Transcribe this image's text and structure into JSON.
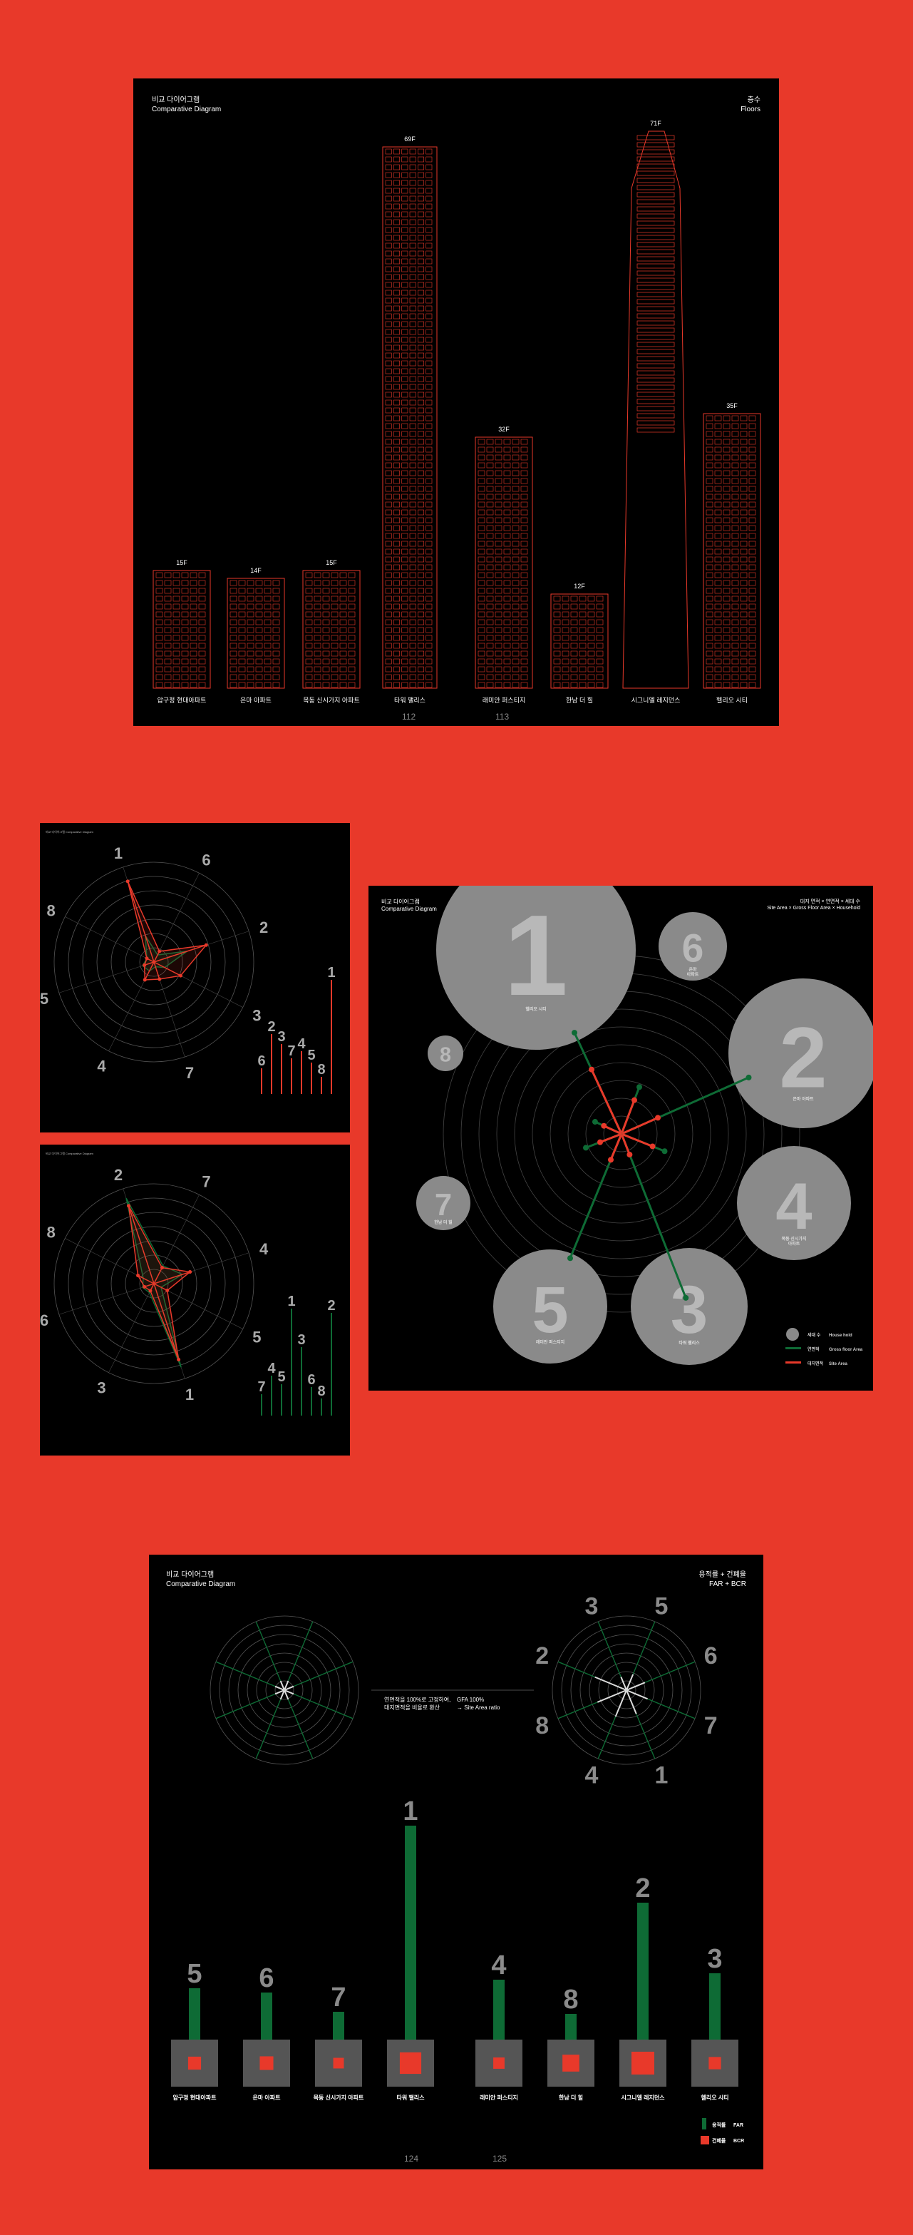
{
  "colors": {
    "background": "#e8392a",
    "panel": "#000000",
    "outline": "#e8392a",
    "green": "#0e6b35",
    "grey": "#8a8a8a"
  },
  "section1": {
    "title_kr": "비교 다이어그램",
    "title_en": "Comparative Diagram",
    "topic_kr": "층수",
    "topic_en": "Floors",
    "page_left": "112",
    "page_right": "113",
    "buildings": [
      {
        "name": "압구정 현대아파트",
        "floors_label": "15F",
        "floors": 15
      },
      {
        "name": "은마 아파트",
        "floors_label": "14F",
        "floors": 14
      },
      {
        "name": "목동 신시가지 아파트",
        "floors_label": "15F",
        "floors": 15
      },
      {
        "name": "타워 팰리스",
        "floors_label": "69F",
        "floors": 69
      },
      {
        "name": "래미안 퍼스티지",
        "floors_label": "32F",
        "floors": 32
      },
      {
        "name": "한남 더 힐",
        "floors_label": "12F",
        "floors": 12
      },
      {
        "name": "시그니엘 레지던스",
        "floors_label": "71F",
        "floors": 71
      },
      {
        "name": "헬리오 시티",
        "floors_label": "35F",
        "floors": 35
      }
    ]
  },
  "section2": {
    "small_left_title": "비교 다이어그램\nComparative Diagram",
    "radarA": {
      "axis_labels": [
        "1",
        "6",
        "2",
        "3",
        "7",
        "4",
        "5",
        "8"
      ],
      "bar_labels": [
        "6",
        "2",
        "3",
        "7",
        "4",
        "5",
        "8",
        "1"
      ],
      "bar_values": [
        0.18,
        0.42,
        0.35,
        0.25,
        0.3,
        0.22,
        0.12,
        0.8
      ]
    },
    "radarB": {
      "axis_labels": [
        "2",
        "7",
        "4",
        "5",
        "1",
        "3",
        "6",
        "8"
      ],
      "bar_labels": [
        "7",
        "4",
        "5",
        "1",
        "3",
        "6",
        "8",
        "2"
      ],
      "bar_values": [
        0.15,
        0.28,
        0.22,
        0.75,
        0.48,
        0.2,
        0.12,
        0.72
      ]
    },
    "big": {
      "title_kr": "비교 다이어그램",
      "title_en": "Comparative Diagram",
      "topic_line1": "대지 면적 × 연면적 × 세대 수",
      "topic_line2": "Site Area × Gross Floor Area × Household",
      "circles": [
        {
          "num": "1",
          "name": "헬리오 시티",
          "size": 1.0
        },
        {
          "num": "6",
          "name": "은마\n아파트",
          "size": 0.35
        },
        {
          "num": "2",
          "name": "은마 아파트",
          "size": 0.78
        },
        {
          "num": "4",
          "name": "목동 신시가지\n아파트",
          "size": 0.6
        },
        {
          "num": "3",
          "name": "타워 팰리스",
          "size": 0.62
        },
        {
          "num": "5",
          "name": "래미안 퍼스티지",
          "size": 0.58
        },
        {
          "num": "7",
          "name": "한남 더 힐",
          "size": 0.28
        },
        {
          "num": "8",
          "name": "",
          "size": 0.18
        }
      ],
      "legend": [
        {
          "label_kr": "세대 수",
          "label_en": "House hold",
          "kind": "circle"
        },
        {
          "label_kr": "연면적",
          "label_en": "Gross floor Area",
          "kind": "green"
        },
        {
          "label_kr": "대지면적",
          "label_en": "Site Area",
          "kind": "red"
        }
      ]
    }
  },
  "section3": {
    "title_kr": "비교 다이어그램",
    "title_en": "Comparative Diagram",
    "topic_kr": "용적률 + 건폐율",
    "topic_en": "FAR + BCR",
    "note_line1": "연면적을 100%로 고정하여,",
    "note_line2": "대지면적을 비율로 환산",
    "note2_line1": "GFA 100%",
    "note2_line2": "→ Site Area ratio",
    "radar_labels": [
      "3",
      "5",
      "6",
      "7",
      "1",
      "4",
      "8",
      "2"
    ],
    "page_left": "124",
    "page_right": "125",
    "legend": [
      {
        "label_kr": "용적률",
        "label_en": "FAR"
      },
      {
        "label_kr": "건폐율",
        "label_en": "BCR"
      }
    ],
    "bars": [
      {
        "rank": "5",
        "name": "압구정 현대아파트",
        "far": 0.24,
        "bcr": 0.22
      },
      {
        "rank": "6",
        "name": "은마 아파트",
        "far": 0.22,
        "bcr": 0.24
      },
      {
        "rank": "7",
        "name": "목동 신시가지 아파트",
        "far": 0.13,
        "bcr": 0.15
      },
      {
        "rank": "1",
        "name": "타워 팰리스",
        "far": 1.0,
        "bcr": 0.48
      },
      {
        "rank": "4",
        "name": "래미안 퍼스티지",
        "far": 0.28,
        "bcr": 0.17
      },
      {
        "rank": "8",
        "name": "한남 더 힐",
        "far": 0.12,
        "bcr": 0.34
      },
      {
        "rank": "2",
        "name": "시그니엘 레지던스",
        "far": 0.64,
        "bcr": 0.52
      },
      {
        "rank": "3",
        "name": "헬리오 시티",
        "far": 0.31,
        "bcr": 0.2
      }
    ]
  }
}
